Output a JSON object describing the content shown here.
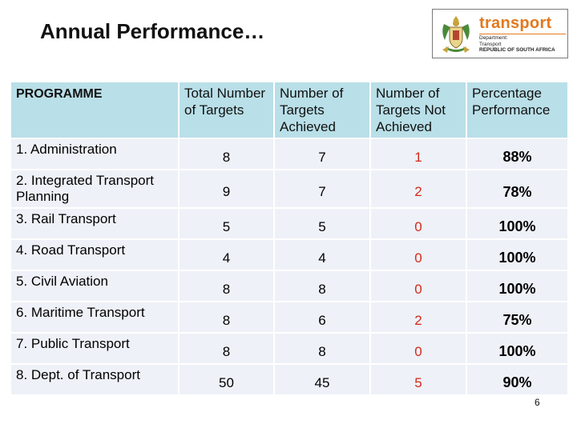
{
  "title": "Annual Performance…",
  "logo": {
    "word": "transport",
    "lines": [
      "Department:",
      "Transport"
    ],
    "rsa": "REPUBLIC OF SOUTH AFRICA",
    "colors": {
      "accent": "#e2791f",
      "crest_green": "#4a8a3a",
      "crest_gold": "#c8a23a"
    }
  },
  "table": {
    "headers": [
      "PROGRAMME",
      "Total Number of Targets",
      "Number of Targets Achieved",
      "Number of Targets Not Achieved",
      "Percentage Performance"
    ],
    "rows": [
      {
        "programme": "1. Administration",
        "total": "8",
        "achieved": "7",
        "not_achieved": "1",
        "percentage": "88%"
      },
      {
        "programme": "2. Integrated Transport Planning",
        "total": "9",
        "achieved": "7",
        "not_achieved": "2",
        "percentage": "78%"
      },
      {
        "programme": "3. Rail Transport",
        "total": "5",
        "achieved": "5",
        "not_achieved": "0",
        "percentage": "100%"
      },
      {
        "programme": "4. Road Transport",
        "total": "4",
        "achieved": "4",
        "not_achieved": "0",
        "percentage": "100%"
      },
      {
        "programme": "5. Civil Aviation",
        "total": "8",
        "achieved": "8",
        "not_achieved": "0",
        "percentage": "100%"
      },
      {
        "programme": "6. Maritime Transport",
        "total": "8",
        "achieved": "6",
        "not_achieved": "2",
        "percentage": "75%"
      },
      {
        "programme": "7. Public Transport",
        "total": "8",
        "achieved": "8",
        "not_achieved": "0",
        "percentage": "100%"
      },
      {
        "programme": "8. Dept. of Transport",
        "total": "50",
        "achieved": "45",
        "not_achieved": "5",
        "percentage": "90%"
      }
    ],
    "colors": {
      "header_bg": "#b9dfe8",
      "row_bg": "#eef1f7",
      "not_achieved_text": "#d22a1a"
    }
  },
  "page_number": "6"
}
